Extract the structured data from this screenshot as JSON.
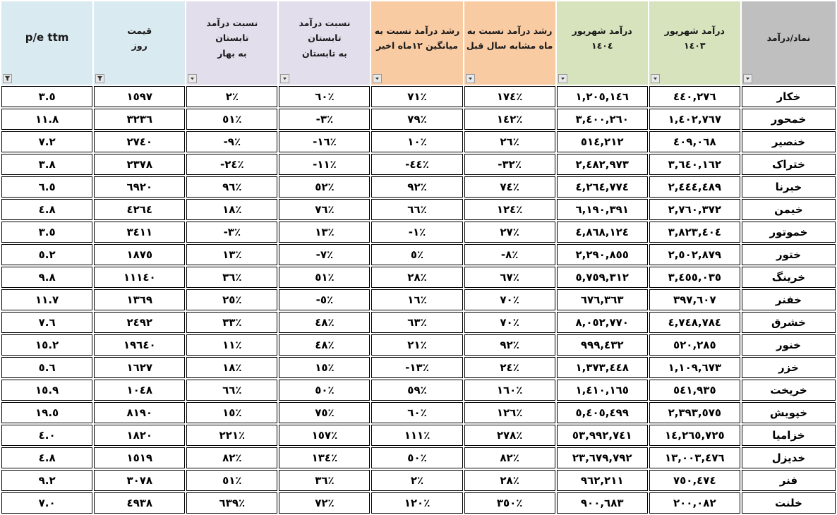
{
  "table": {
    "title_semantic": "revenue-comparison-spreadsheet",
    "accent_colors": {
      "symbol_header": "#BFBFBF",
      "revenue_headers": "#D6E3BC",
      "growth_headers": "#F9CBA2",
      "ratio_headers": "#E2DEEC",
      "price_pe_headers": "#DAEAF1",
      "cell_border": "#000000"
    },
    "columns": [
      {
        "key": "symbol",
        "label": "نماد/درآمد",
        "color": "#BFBFBF",
        "filter": "arrow"
      },
      {
        "key": "rev_1403",
        "label": "درآمد شهریور\n١٤٠٣",
        "color": "#D6E3BC",
        "filter": "arrow"
      },
      {
        "key": "rev_1404",
        "label": "درآمد شهریور\n١٤٠٤",
        "color": "#D6E3BC",
        "filter": "arrow"
      },
      {
        "key": "growth_yoy",
        "label": "رشد درآمد  نسبت به\nماه مشابه سال قبل",
        "color": "#F9CBA2",
        "filter": "arrow"
      },
      {
        "key": "growth_12m",
        "label": "رشد درآمد نسبت به\nمیانگین ١٢ماه اخیر",
        "color": "#F9CBA2",
        "filter": "arrow"
      },
      {
        "key": "ratio_summer_summer",
        "label": "نسبت درآمد تابستان\nبه تابستان",
        "color": "#E2DEEC",
        "filter": "arrow"
      },
      {
        "key": "ratio_summer_spring",
        "label": "نسبت درآمد تابستان\nبه بهار",
        "color": "#E2DEEC",
        "filter": "arrow"
      },
      {
        "key": "price",
        "label": "قیمت\nروز",
        "color": "#DAEAF1",
        "filter": "funnel"
      },
      {
        "key": "pe",
        "label": "p/e ttm",
        "color": "#DAEAF1",
        "filter": "funnel"
      }
    ],
    "rows": [
      {
        "symbol": "خکار",
        "rev_1403": "٤٤٠,٢٧٦",
        "rev_1404": "١,٢٠٥,١٤٦",
        "growth_yoy": "١٧٤٪",
        "growth_12m": "٧١٪",
        "ratio_summer_summer": "٦٠٪",
        "ratio_summer_spring": "٢٪",
        "price": "١٥٩٧",
        "pe": "٣.٥"
      },
      {
        "symbol": "خمحور",
        "rev_1403": "١,٤٠٢,٧٦٧",
        "rev_1404": "٣,٤٠٠,٢٦٠",
        "growth_yoy": "١٤٢٪",
        "growth_12m": "٧٩٪",
        "ratio_summer_summer": "-٣٪",
        "ratio_summer_spring": "٥١٪",
        "price": "٣٢٣٦",
        "pe": "١١.٨"
      },
      {
        "symbol": "خنصیر",
        "rev_1403": "٤٠٩,٠٦٨",
        "rev_1404": "٥١٤,٢١٢",
        "growth_yoy": "٢٦٪",
        "growth_12m": "١٠٪",
        "ratio_summer_summer": "-١٦٪",
        "ratio_summer_spring": "-٩٪",
        "price": "٢٧٤٠",
        "pe": "٧.٢"
      },
      {
        "symbol": "ختراک",
        "rev_1403": "٣,٦٤٠,١٦٢",
        "rev_1404": "٢,٤٨٢,٩٧٣",
        "growth_yoy": "-٣٢٪",
        "growth_12m": "-٤٤٪",
        "ratio_summer_summer": "-١١٪",
        "ratio_summer_spring": "-٢٤٪",
        "price": "٢٣٧٨",
        "pe": "٣.٨"
      },
      {
        "symbol": "خبرنا",
        "rev_1403": "٢,٤٤٤,٤٨٩",
        "rev_1404": "٤,٢٦٤,٧٧٤",
        "growth_yoy": "٧٤٪",
        "growth_12m": "٩٢٪",
        "ratio_summer_summer": "٥٢٪",
        "ratio_summer_spring": "٩٦٪",
        "price": "٦٩٢٠",
        "pe": "٦.٥"
      },
      {
        "symbol": "خیمن",
        "rev_1403": "٢,٧٦٠,٣٧٢",
        "rev_1404": "٦,١٩٠,٣٩١",
        "growth_yoy": "١٢٤٪",
        "growth_12m": "٦٦٪",
        "ratio_summer_summer": "٧٦٪",
        "ratio_summer_spring": "١٨٪",
        "price": "٤٢٦٤",
        "pe": "٤.٨"
      },
      {
        "symbol": "خموتور",
        "rev_1403": "٣,٨٢٣,٤٠٤",
        "rev_1404": "٤,٨٦٨,١٢٤",
        "growth_yoy": "٢٧٪",
        "growth_12m": "-١٪",
        "ratio_summer_summer": "١٣٪",
        "ratio_summer_spring": "-٣٪",
        "price": "٣٤١١",
        "pe": "٣.٥"
      },
      {
        "symbol": "ختور",
        "rev_1403": "٢,٥٠٢,٨٧٩",
        "rev_1404": "٢,٢٩٠,٨٥٥",
        "growth_yoy": "-٨٪",
        "growth_12m": "٥٪",
        "ratio_summer_summer": "-٧٪",
        "ratio_summer_spring": "١٣٪",
        "price": "١٨٧٥",
        "pe": "٥.٢"
      },
      {
        "symbol": "خرینگ",
        "rev_1403": "٣,٤٥٥,٠٣٥",
        "rev_1404": "٥,٧٥٩,٣١٢",
        "growth_yoy": "٦٧٪",
        "growth_12m": "٢٨٪",
        "ratio_summer_summer": "٥١٪",
        "ratio_summer_spring": "٣٦٪",
        "price": "١١١٤٠",
        "pe": "٩.٨"
      },
      {
        "symbol": "خفنر",
        "rev_1403": "٣٩٧,٦٠٧",
        "rev_1404": "٦٧٦,٣٦٣",
        "growth_yoy": "٧٠٪",
        "growth_12m": "١٦٪",
        "ratio_summer_summer": "-٥٪",
        "ratio_summer_spring": "٢٥٪",
        "price": "١٣٦٩",
        "pe": "١١.٧"
      },
      {
        "symbol": "خشرق",
        "rev_1403": "٤,٧٤٨,٧٨٤",
        "rev_1404": "٨,٠٥٢,٧٧٠",
        "growth_yoy": "٧٠٪",
        "growth_12m": "٦٣٪",
        "ratio_summer_summer": "٤٨٪",
        "ratio_summer_spring": "٣٣٪",
        "price": "٢٤٩٢",
        "pe": "٧.٦"
      },
      {
        "symbol": "خنور",
        "rev_1403": "٥٢٠,٢٨٥",
        "rev_1404": "٩٩٩,٤٣٢",
        "growth_yoy": "٩٢٪",
        "growth_12m": "٢١٪",
        "ratio_summer_summer": "٤٨٪",
        "ratio_summer_spring": "١١٪",
        "price": "١٩٦٤٠",
        "pe": "١٥.٢"
      },
      {
        "symbol": "خزر",
        "rev_1403": "١,١٠٩,٦٧٣",
        "rev_1404": "١,٣٧٣,٤٤٨",
        "growth_yoy": "٢٤٪",
        "growth_12m": "-١٣٪",
        "ratio_summer_summer": "١٥٪",
        "ratio_summer_spring": "١٨٪",
        "price": "١٦٢٧",
        "pe": "٥.٦"
      },
      {
        "symbol": "خریخت",
        "rev_1403": "٥٤١,٩٣٥",
        "rev_1404": "١,٤١٠,١٦٥",
        "growth_yoy": "١٦٠٪",
        "growth_12m": "٥٩٪",
        "ratio_summer_summer": "٥٠٪",
        "ratio_summer_spring": "٦٦٪",
        "price": "١٠٤٨",
        "pe": "١٥.٩"
      },
      {
        "symbol": "خپویش",
        "rev_1403": "٢,٣٩٣,٥٧٥",
        "rev_1404": "٥,٤٠٥,٤٩٩",
        "growth_yoy": "١٢٦٪",
        "growth_12m": "٦٠٪",
        "ratio_summer_summer": "٧٥٪",
        "ratio_summer_spring": "١٥٪",
        "price": "٨١٩٠",
        "pe": "١٩.٥"
      },
      {
        "symbol": "خزامیا",
        "rev_1403": "١٤,٢٦٥,٧٢٥",
        "rev_1404": "٥٣,٩٩٢,٧٤١",
        "growth_yoy": "٢٧٨٪",
        "growth_12m": "١١١٪",
        "ratio_summer_summer": "١٥٧٪",
        "ratio_summer_spring": "٢٢١٪",
        "price": "١٨٢٠",
        "pe": "٤.٠"
      },
      {
        "symbol": "خدیزل",
        "rev_1403": "١٣,٠٠٣,٤٧٦",
        "rev_1404": "٢٣,٦٧٩,٧٩٢",
        "growth_yoy": "٨٢٪",
        "growth_12m": "٥٠٪",
        "ratio_summer_summer": "١٣٤٪",
        "ratio_summer_spring": "٨٢٪",
        "price": "١٥١٩",
        "pe": "٤.٨"
      },
      {
        "symbol": "فنر",
        "rev_1403": "٧٥٠,٤٧٤",
        "rev_1404": "٩٦٢,٢١١",
        "growth_yoy": "٢٨٪",
        "growth_12m": "٢٪",
        "ratio_summer_summer": "٣٦٪",
        "ratio_summer_spring": "٥١٪",
        "price": "٣٠٧٨",
        "pe": "٩.٢"
      },
      {
        "symbol": "خلنت",
        "rev_1403": "٢٠٠,٠٨٢",
        "rev_1404": "٩٠٠,٦٨٣",
        "growth_yoy": "٣٥٠٪",
        "growth_12m": "١٢٠٪",
        "ratio_summer_summer": "٧٢٪",
        "ratio_summer_spring": "٦٣٩٪",
        "price": "٤٩٣٨",
        "pe": "٧.٠"
      }
    ]
  }
}
